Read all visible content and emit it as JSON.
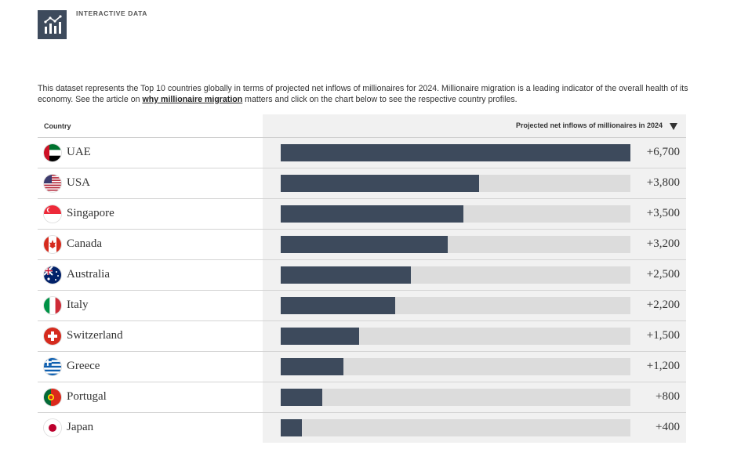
{
  "header": {
    "kicker": "INTERACTIVE DATA",
    "logo_icon": "chart-icon"
  },
  "intro": {
    "text_before": "This dataset represents the Top 10 countries globally in terms of projected net inflows of millionaires for 2024. Millionaire migration is a leading indicator of the overall health of its economy. See the article on ",
    "link_text": "why millionaire migration",
    "text_after": " matters and click on the chart below to see the respective country profiles."
  },
  "table": {
    "col_country": "Country",
    "col_value": "Projected net inflows of millionaires in 2024",
    "sort_icon": "sort-desc-icon"
  },
  "colors": {
    "bar": "#3d4a5c",
    "track": "#dcdcdc",
    "header_bg": "#f1f1f1"
  },
  "chart_data": {
    "type": "bar",
    "orientation": "horizontal",
    "categories": [
      "UAE",
      "USA",
      "Singapore",
      "Canada",
      "Australia",
      "Italy",
      "Switzerland",
      "Greece",
      "Portugal",
      "Japan"
    ],
    "values": [
      6700,
      3800,
      3500,
      3200,
      2500,
      2200,
      1500,
      1200,
      800,
      400
    ],
    "labels": [
      "+6,700",
      "+3,800",
      "+3,500",
      "+3,200",
      "+2,500",
      "+2,200",
      "+1,500",
      "+1,200",
      "+800",
      "+400"
    ],
    "flags": [
      "uae-flag-icon",
      "usa-flag-icon",
      "singapore-flag-icon",
      "canada-flag-icon",
      "australia-flag-icon",
      "italy-flag-icon",
      "switzerland-flag-icon",
      "greece-flag-icon",
      "portugal-flag-icon",
      "japan-flag-icon"
    ],
    "xlim": [
      0,
      6700
    ],
    "ylabel": "Projected net inflows of millionaires in 2024",
    "xlabel": "Country"
  }
}
